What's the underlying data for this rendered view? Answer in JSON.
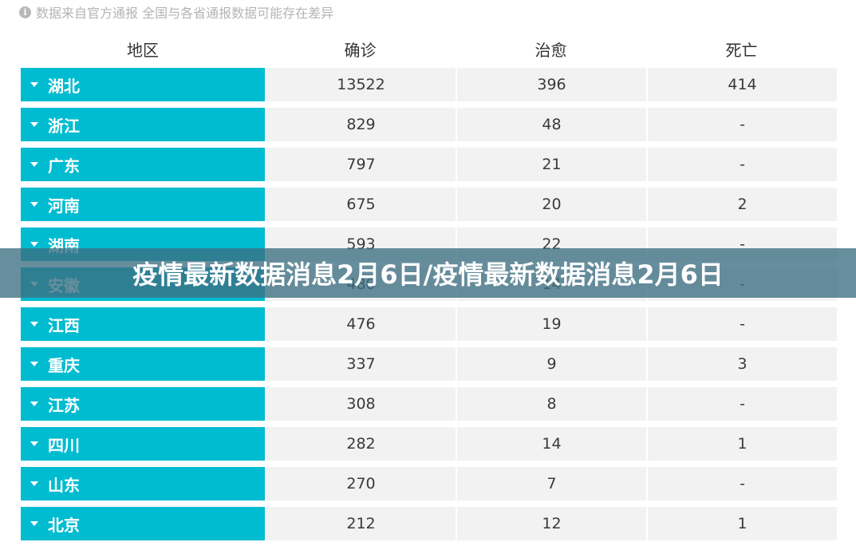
{
  "note": {
    "icon": "info-icon",
    "text": "数据来自官方通报 全国与各省通报数据可能存在差异"
  },
  "header": {
    "region": "地区",
    "confirmed": "确诊",
    "cured": "治愈",
    "dead": "死亡"
  },
  "rows": [
    {
      "region": "湖北",
      "confirmed": "13522",
      "cured": "396",
      "dead": "414"
    },
    {
      "region": "浙江",
      "confirmed": "829",
      "cured": "48",
      "dead": "-"
    },
    {
      "region": "广东",
      "confirmed": "797",
      "cured": "21",
      "dead": "-"
    },
    {
      "region": "河南",
      "confirmed": "675",
      "cured": "20",
      "dead": "2"
    },
    {
      "region": "湖南",
      "confirmed": "593",
      "cured": "22",
      "dead": "-"
    },
    {
      "region": "安徽",
      "confirmed": "480",
      "cured": "14",
      "dead": "-"
    },
    {
      "region": "江西",
      "confirmed": "476",
      "cured": "19",
      "dead": "-"
    },
    {
      "region": "重庆",
      "confirmed": "337",
      "cured": "9",
      "dead": "3"
    },
    {
      "region": "江苏",
      "confirmed": "308",
      "cured": "8",
      "dead": "-"
    },
    {
      "region": "四川",
      "confirmed": "282",
      "cured": "14",
      "dead": "1"
    },
    {
      "region": "山东",
      "confirmed": "270",
      "cured": "7",
      "dead": "-"
    },
    {
      "region": "北京",
      "confirmed": "212",
      "cured": "12",
      "dead": "1"
    }
  ],
  "banner": {
    "title": "疫情最新数据消息2月6日/疫情最新数据消息2月6日"
  },
  "colors": {
    "region_bg": "#00bcd0",
    "cell_bg": "#f2f2f2",
    "banner_bg": "#3c6e82"
  }
}
